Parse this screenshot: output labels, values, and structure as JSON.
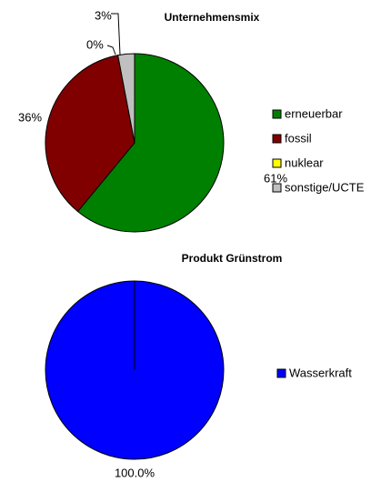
{
  "chart_data": [
    {
      "type": "pie",
      "title": "Unternehmensmix",
      "categories": [
        "erneuerbar",
        "fossil",
        "nuklear",
        "sonstige/UCTE"
      ],
      "values": [
        61,
        36,
        0,
        3
      ],
      "value_labels": [
        "61%",
        "36%",
        "0%",
        "3%"
      ],
      "colors": [
        "#008000",
        "#800000",
        "#ffff00",
        "#c0c0c0"
      ],
      "legend": "right"
    },
    {
      "type": "pie",
      "title": "Produkt Grünstrom",
      "categories": [
        "Wasserkraft"
      ],
      "values": [
        100
      ],
      "value_labels": [
        "100.0%"
      ],
      "colors": [
        "#0000ff"
      ],
      "legend": "right"
    }
  ]
}
